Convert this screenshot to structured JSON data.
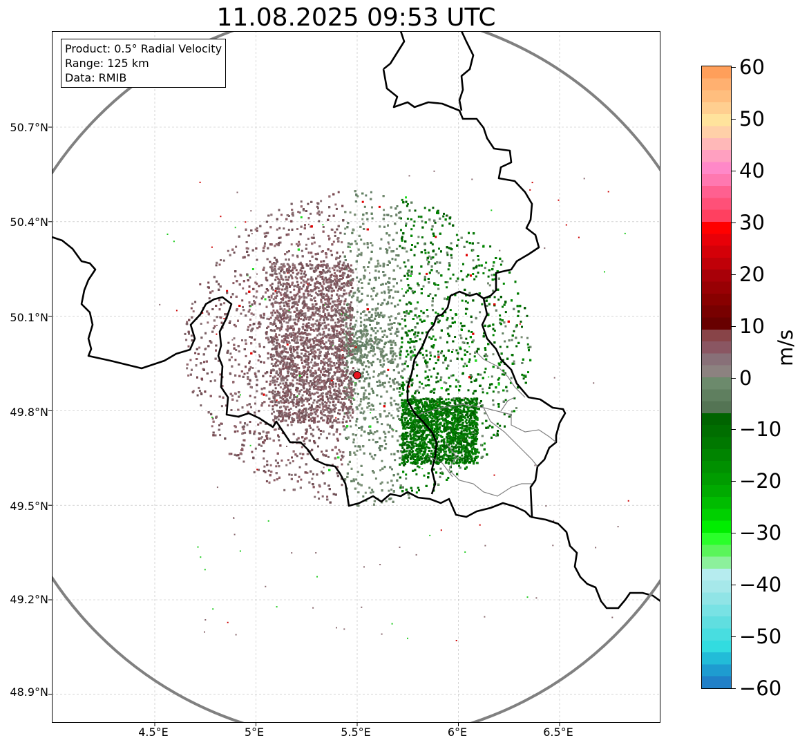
{
  "title": "11.08.2025 09:53 UTC",
  "info_box": {
    "lines": [
      "Product: 0.5° Radial Velocity",
      "Range: 125 km",
      "Data: RMIB"
    ]
  },
  "axes": {
    "x_ticks": [
      "4.5°E",
      "5°E",
      "5.5°E",
      "6°E",
      "6.5°E"
    ],
    "x_values": [
      4.5,
      5.0,
      5.5,
      6.0,
      6.5
    ],
    "y_ticks": [
      "50.7°N",
      "50.4°N",
      "50.1°N",
      "49.8°N",
      "49.5°N",
      "49.2°N",
      "48.9°N"
    ],
    "y_values": [
      50.7,
      50.4,
      50.1,
      49.8,
      49.5,
      49.2,
      48.9
    ],
    "lon_range": [
      4.0,
      7.0
    ],
    "lat_range": [
      48.8,
      51.0
    ],
    "grid": true
  },
  "radar": {
    "lon": 5.5,
    "lat": 49.91,
    "range_km": 125,
    "site_color": "#e8141e"
  },
  "colorbar": {
    "label": "m/s",
    "min": -60,
    "max": 60,
    "ticks": [
      "60",
      "50",
      "40",
      "30",
      "20",
      "10",
      "0",
      "−10",
      "−20",
      "−30",
      "−40",
      "−50",
      "−60"
    ],
    "tick_values": [
      60,
      50,
      40,
      30,
      20,
      10,
      0,
      -10,
      -20,
      -30,
      -40,
      -50,
      -60
    ],
    "colors_top_to_bottom": [
      "#ff9f5a",
      "#ffb070",
      "#ffbe7e",
      "#ffcf90",
      "#ffe39c",
      "#ffd0a8",
      "#ffb8b8",
      "#ffa0c0",
      "#ff88c8",
      "#ff78b0",
      "#ff6090",
      "#ff5078",
      "#ff4060",
      "#ff0000",
      "#e80008",
      "#d40008",
      "#c00008",
      "#a80008",
      "#980004",
      "#880000",
      "#780000",
      "#680000",
      "#884448",
      "#8a5662",
      "#887078",
      "#8c8280",
      "#6c8a6c",
      "#5f7f5f",
      "#547454",
      "#006400",
      "#006e00",
      "#007800",
      "#008400",
      "#009000",
      "#009c00",
      "#00aa00",
      "#00bc00",
      "#00d000",
      "#00ee00",
      "#2aff2a",
      "#5af55a",
      "#8cf09c",
      "#b6ecef",
      "#a6e8ea",
      "#90e4e6",
      "#78e2e4",
      "#60dee0",
      "#48dde0",
      "#32dce0",
      "#22bcd8",
      "#1e9cd0",
      "#2080c8"
    ]
  },
  "colors": {
    "approaching": "#007000",
    "receding": "#7a4a52",
    "border": "#000000",
    "admin_border": "#808080",
    "range_ring": "#808080",
    "grid": "#bbbbbb"
  }
}
